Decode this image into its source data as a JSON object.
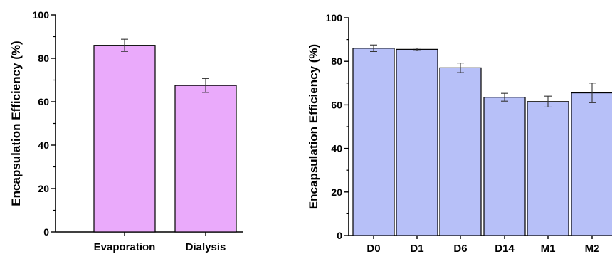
{
  "chart_data": [
    {
      "type": "bar",
      "categories": [
        "Evaporation",
        "Dialysis"
      ],
      "values": [
        86,
        67.5
      ],
      "errors": [
        2.8,
        3.2
      ],
      "ylabel": "Encapsulation Efficiency (%)",
      "xlabel": "",
      "ylim": [
        0,
        100
      ],
      "yticks": [
        "0",
        "20",
        "40",
        "60",
        "80",
        "100"
      ],
      "bar_color": "#eaaafb"
    },
    {
      "type": "bar",
      "categories": [
        "D0",
        "D1",
        "D6",
        "D14",
        "M1",
        "M2"
      ],
      "values": [
        86,
        85.5,
        77,
        63.5,
        61.5,
        65.5
      ],
      "errors": [
        1.5,
        0.6,
        2.2,
        1.8,
        2.5,
        4.5
      ],
      "ylabel": "Encapsulation Efficiency (%)",
      "xlabel": "",
      "ylim": [
        0,
        100
      ],
      "yticks": [
        "0",
        "20",
        "40",
        "60",
        "80",
        "100"
      ],
      "bar_color": "#b7c0f8"
    }
  ]
}
